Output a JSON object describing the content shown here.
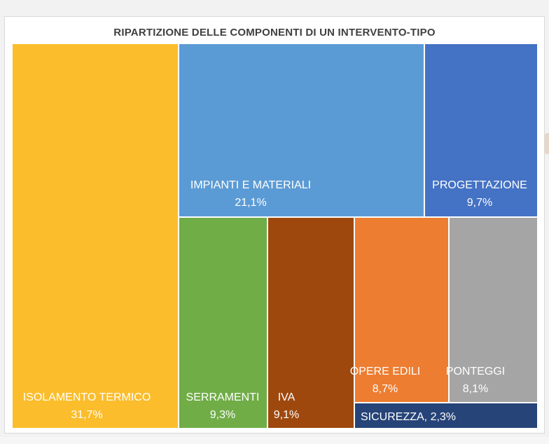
{
  "chart_data": {
    "type": "treemap",
    "title": "RIPARTIZIONE DELLE COMPONENTI DI UN INTERVENTO-TIPO",
    "items": [
      {
        "name": "ISOLAMENTO TERMICO",
        "value_label": "31,7%",
        "value": 31.7,
        "color": "#fbbd2b",
        "text_color": "#ffffff"
      },
      {
        "name": "IMPIANTI E MATERIALI",
        "value_label": "21,1%",
        "value": 21.1,
        "color": "#5b9bd5",
        "text_color": "#ffffff"
      },
      {
        "name": "PROGETTAZIONE",
        "value_label": "9,7%",
        "value": 9.7,
        "color": "#4472c4",
        "text_color": "#ffffff"
      },
      {
        "name": "SERRAMENTI",
        "value_label": "9,3%",
        "value": 9.3,
        "color": "#70ad47",
        "text_color": "#ffffff"
      },
      {
        "name": "IVA",
        "value_label": "9,1%",
        "value": 9.1,
        "color": "#9e480e",
        "text_color": "#ffffff"
      },
      {
        "name": "OPERE EDILI",
        "value_label": "8,7%",
        "value": 8.7,
        "color": "#ed7d31",
        "text_color": "#ffffff"
      },
      {
        "name": "PONTEGGI",
        "value_label": "8,1%",
        "value": 8.1,
        "color": "#a5a5a5",
        "text_color": "#ffffff"
      },
      {
        "name": "SICUREZZA",
        "value_label": "2,3%",
        "value": 2.3,
        "color": "#264478",
        "text_color": "#ffffff",
        "inline_label": "SICUREZZA, 2,3%"
      }
    ]
  }
}
